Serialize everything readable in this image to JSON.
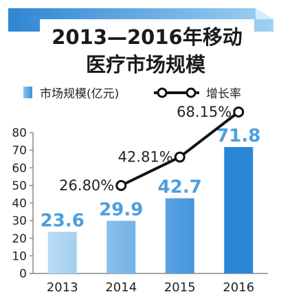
{
  "chart_data": {
    "type": "bar",
    "title": "2013—2016年移动医疗市场规模",
    "title_lines": [
      "2013—2016年移动",
      "医疗市场规模"
    ],
    "categories": [
      "2013",
      "2014",
      "2015",
      "2016"
    ],
    "series": [
      {
        "name": "市场规模(亿元)",
        "kind": "bar",
        "values": [
          23.6,
          29.9,
          42.7,
          71.8
        ],
        "labels": [
          "23.6",
          "29.9",
          "42.7",
          "71.8"
        ]
      },
      {
        "name": "增长率",
        "kind": "line",
        "x": [
          "2014",
          "2015",
          "2016"
        ],
        "values": [
          26.8,
          42.81,
          68.15
        ],
        "labels": [
          "26.80%",
          "42.81%",
          "68.15%"
        ]
      }
    ],
    "y_ticks": [
      0,
      10,
      20,
      30,
      40,
      50,
      60,
      70,
      80
    ],
    "ylim": [
      0,
      80
    ],
    "legend_position": "top",
    "grid": false,
    "colors": {
      "banner": "#3a93d9",
      "title_text": "#1a1a1a",
      "bar_light": "#b9dcf6",
      "bar_dark": "#2a86d6",
      "value_label": "#4a9fe0",
      "line": "#111111",
      "axis": "#888888",
      "text": "#222222"
    }
  }
}
